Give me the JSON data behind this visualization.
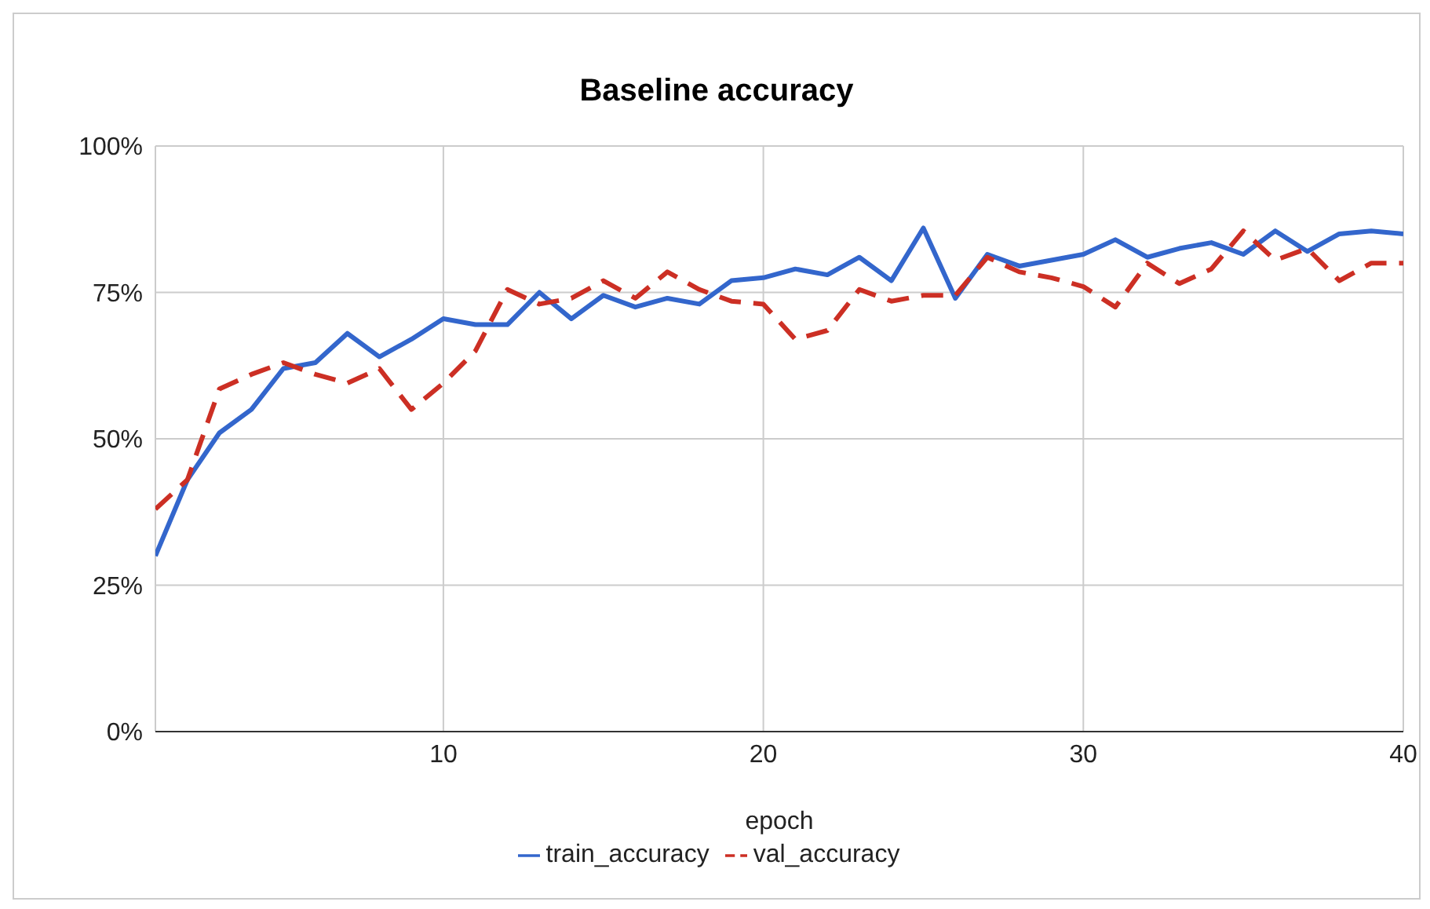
{
  "chart_data": {
    "type": "line",
    "title": "Baseline accuracy",
    "xlabel": "epoch",
    "x": [
      1,
      2,
      3,
      4,
      5,
      6,
      7,
      8,
      9,
      10,
      11,
      12,
      13,
      14,
      15,
      16,
      17,
      18,
      19,
      20,
      21,
      22,
      23,
      24,
      25,
      26,
      27,
      28,
      29,
      30,
      31,
      32,
      33,
      34,
      35,
      36,
      37,
      38,
      39,
      40
    ],
    "series": [
      {
        "name": "train_accuracy",
        "color": "#3366cc",
        "line_style": "solid",
        "values": [
          30,
          43,
          51,
          55,
          62,
          63,
          68,
          64,
          67,
          70.5,
          69.5,
          69.5,
          75,
          70.5,
          74.5,
          72.5,
          74,
          73,
          77,
          77.5,
          79,
          78,
          81,
          77,
          86,
          74,
          81.5,
          79.5,
          80.5,
          81.5,
          84,
          81,
          82.5,
          83.5,
          81.5,
          85.5,
          82,
          85,
          85.5,
          85
        ]
      },
      {
        "name": "val_accuracy",
        "color": "#cc2f24",
        "line_style": "dashed",
        "values": [
          38,
          43,
          58.5,
          61,
          63,
          61,
          59.5,
          62,
          55,
          59.5,
          65,
          75.5,
          73,
          74,
          77,
          74,
          78.5,
          75.5,
          73.5,
          73,
          67,
          68.5,
          75.5,
          73.5,
          74.5,
          74.5,
          81,
          78.5,
          77.5,
          76,
          72.5,
          80,
          76.5,
          79,
          85.5,
          80.5,
          82.5,
          77,
          80,
          80
        ]
      }
    ],
    "xlim": [
      1,
      40
    ],
    "xticks": [
      10,
      20,
      30,
      40
    ],
    "ylim": [
      0,
      100
    ],
    "yticks": [
      {
        "value": 0,
        "label": "0%"
      },
      {
        "value": 25,
        "label": "25%"
      },
      {
        "value": 50,
        "label": "50%"
      },
      {
        "value": 75,
        "label": "75%"
      },
      {
        "value": 100,
        "label": "100%"
      }
    ],
    "grid": true,
    "legend": "bottom",
    "marker": "none"
  }
}
